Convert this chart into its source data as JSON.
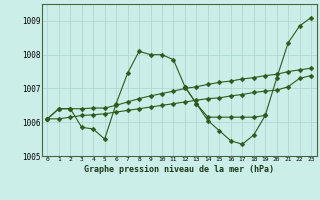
{
  "title": "Graphe pression niveau de la mer (hPa)",
  "background_color": "#cceee8",
  "grid_color": "#aad4cc",
  "line_color": "#2d5a1b",
  "ylim": [
    1005.0,
    1009.5
  ],
  "xlim": [
    -0.5,
    23.5
  ],
  "yticks": [
    1005,
    1006,
    1007,
    1008,
    1009
  ],
  "xticks": [
    0,
    1,
    2,
    3,
    4,
    5,
    6,
    7,
    8,
    9,
    10,
    11,
    12,
    13,
    14,
    15,
    16,
    17,
    18,
    19,
    20,
    21,
    22,
    23
  ],
  "series": [
    {
      "x": [
        0,
        1,
        2,
        3,
        4,
        5,
        6,
        7,
        8,
        9,
        10,
        11,
        12,
        13,
        14,
        15,
        16,
        17,
        18,
        19
      ],
      "y": [
        1006.1,
        1006.4,
        1006.4,
        1005.85,
        1005.8,
        1005.5,
        1006.55,
        1007.45,
        1008.1,
        1008.0,
        1008.0,
        1007.85,
        1007.05,
        1006.55,
        1006.15,
        1006.15,
        1006.15,
        1006.15,
        1006.15,
        1006.2
      ]
    },
    {
      "x": [
        0,
        1,
        2,
        3,
        4,
        5,
        6,
        7,
        8,
        9,
        10,
        11,
        12,
        13,
        14,
        15,
        16,
        17,
        18,
        19,
        20,
        21,
        22,
        23
      ],
      "y": [
        1006.1,
        1006.1,
        1006.15,
        1006.2,
        1006.22,
        1006.25,
        1006.3,
        1006.35,
        1006.4,
        1006.45,
        1006.5,
        1006.55,
        1006.6,
        1006.65,
        1006.7,
        1006.72,
        1006.78,
        1006.82,
        1006.88,
        1006.92,
        1006.95,
        1007.05,
        1007.3,
        1007.38
      ]
    },
    {
      "x": [
        0,
        1,
        2,
        3,
        4,
        5,
        6,
        7,
        8,
        9,
        10,
        11,
        12,
        13,
        14,
        15,
        16,
        17,
        18,
        19,
        20,
        21,
        22,
        23
      ],
      "y": [
        1006.1,
        1006.4,
        1006.4,
        1006.4,
        1006.42,
        1006.42,
        1006.5,
        1006.6,
        1006.7,
        1006.78,
        1006.85,
        1006.92,
        1007.0,
        1007.05,
        1007.12,
        1007.18,
        1007.22,
        1007.28,
        1007.32,
        1007.38,
        1007.42,
        1007.5,
        1007.55,
        1007.6
      ]
    },
    {
      "x": [
        12,
        13,
        14,
        15,
        16,
        17,
        18,
        19,
        20,
        21,
        22,
        23
      ],
      "y": [
        1007.05,
        1006.55,
        1006.05,
        1005.75,
        1005.45,
        1005.35,
        1005.62,
        1006.2,
        1007.3,
        1008.35,
        1008.85,
        1009.1
      ]
    }
  ],
  "marker": "D",
  "markersize": 2.5
}
